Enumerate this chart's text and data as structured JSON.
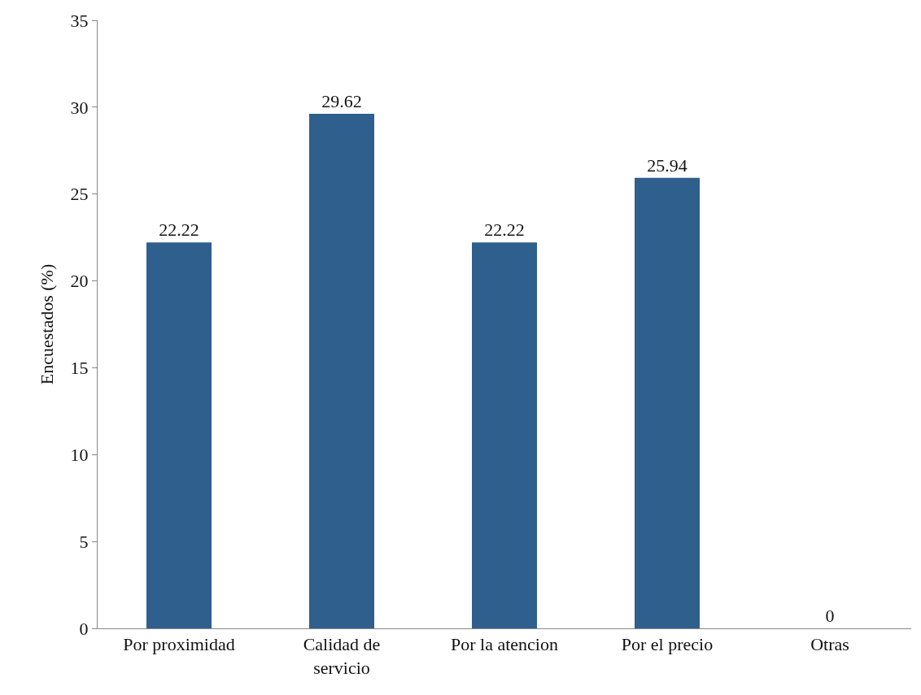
{
  "chart_data": {
    "type": "bar",
    "ylabel": "Encuestados (%)",
    "categories": [
      "Por proximidad",
      "Calidad de servicio",
      "Por la atencion",
      "Por el precio",
      "Otras"
    ],
    "values": [
      22.22,
      29.62,
      22.22,
      25.94,
      0
    ],
    "color": "#2f5f8c",
    "ylim": [
      0,
      35
    ],
    "yticks": [
      0,
      5,
      10,
      15,
      20,
      25,
      30,
      35
    ],
    "grid": false,
    "data_labels": true
  }
}
